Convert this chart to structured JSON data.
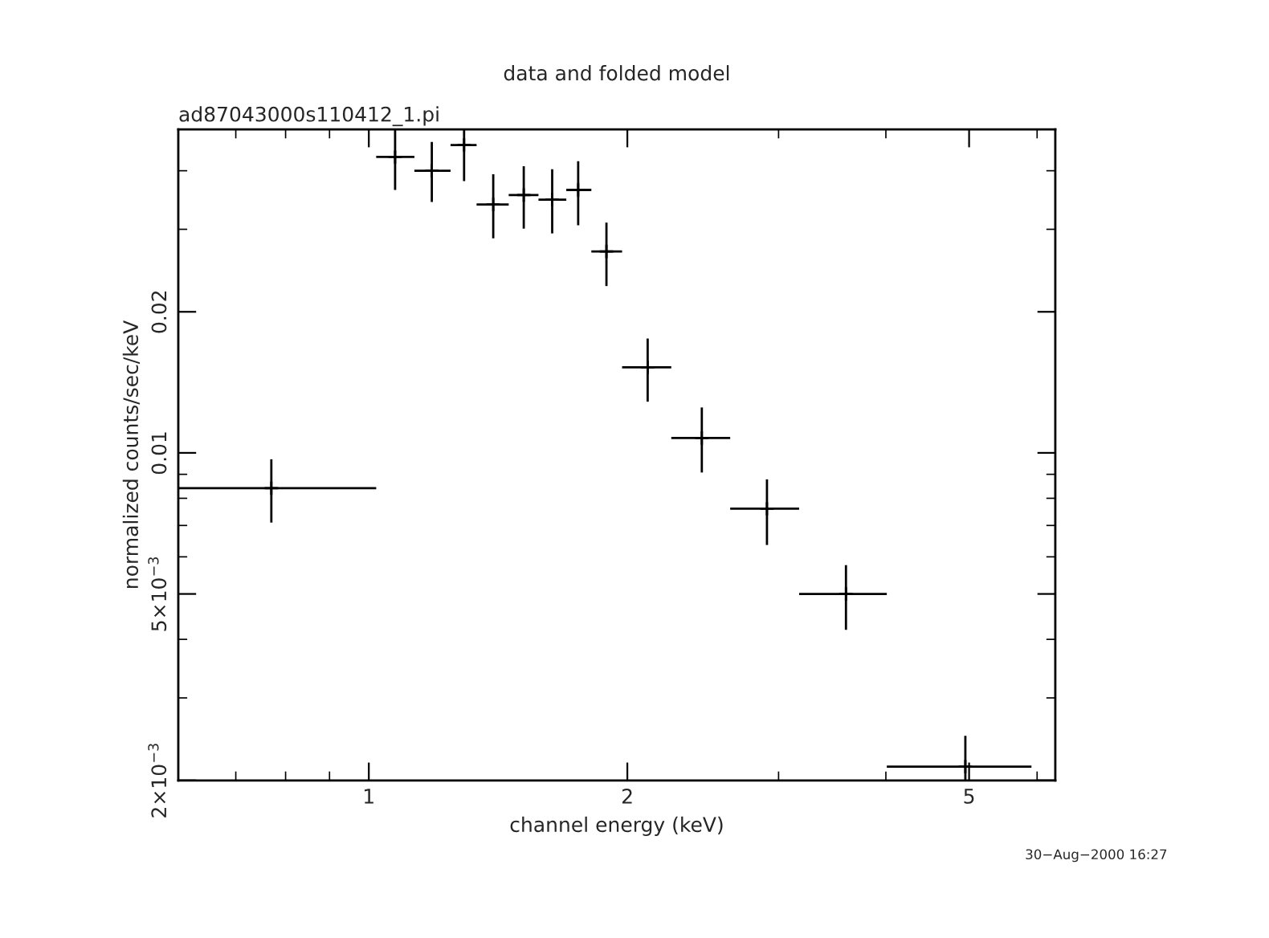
{
  "chart_data": {
    "type": "scatter",
    "title": "data and folded model",
    "subtitle": "ad87043000s110412_1.pi",
    "xlabel": "channel energy (keV)",
    "ylabel": "normalized counts/sec/keV",
    "annotations": [
      "30−Aug−2000 16:27"
    ],
    "log": "xy",
    "marker": "cross",
    "grid": false,
    "legend": false,
    "xlim": [
      0.6,
      6.3
    ],
    "ylim": [
      0.002,
      0.049
    ],
    "xticks": [
      1,
      2,
      5
    ],
    "yticks": [
      {
        "value": 0.002,
        "label": "2×10$^{−3}$"
      },
      {
        "value": 0.005,
        "label": "5×10$^{−3}$"
      },
      0.01,
      0.02
    ],
    "series": [
      {
        "color": "#000000",
        "x": [
          0.77,
          1.073,
          1.184,
          1.291,
          1.396,
          1.515,
          1.635,
          1.753,
          1.891,
          2.112,
          2.442,
          2.908,
          3.594,
          4.95
        ],
        "values": [
          0.00841,
          0.0428,
          0.04,
          0.0454,
          0.0339,
          0.0355,
          0.0347,
          0.0364,
          0.0269,
          0.01523,
          0.01076,
          0.0076,
          0.005,
          0.00214
        ],
        "errors": [
          [
            0.0071,
            0.00969
          ],
          [
            0.0364,
            0.049
          ],
          [
            0.0343,
            0.0461
          ],
          [
            0.038,
            0.049
          ],
          [
            0.0287,
            0.0393
          ],
          [
            0.0301,
            0.0409
          ],
          [
            0.0294,
            0.0403
          ],
          [
            0.0306,
            0.0419
          ],
          [
            0.0227,
            0.031
          ],
          [
            0.01286,
            0.01754
          ],
          [
            0.00908,
            0.0125
          ],
          [
            0.00636,
            0.00878
          ],
          [
            0.00419,
            0.00576
          ],
          [
            0.002,
            0.00249
          ]
        ],
        "xerrors": [
          [
            0.6,
            1.02
          ],
          [
            1.02,
            1.13
          ],
          [
            1.13,
            1.245
          ],
          [
            1.245,
            1.335
          ],
          [
            1.335,
            1.455
          ],
          [
            1.455,
            1.576
          ],
          [
            1.576,
            1.698
          ],
          [
            1.698,
            1.816
          ],
          [
            1.816,
            1.972
          ],
          [
            1.972,
            2.25
          ],
          [
            2.25,
            2.635
          ],
          [
            2.635,
            3.17
          ],
          [
            3.17,
            4.01
          ],
          [
            4.01,
            5.91
          ]
        ]
      }
    ]
  }
}
